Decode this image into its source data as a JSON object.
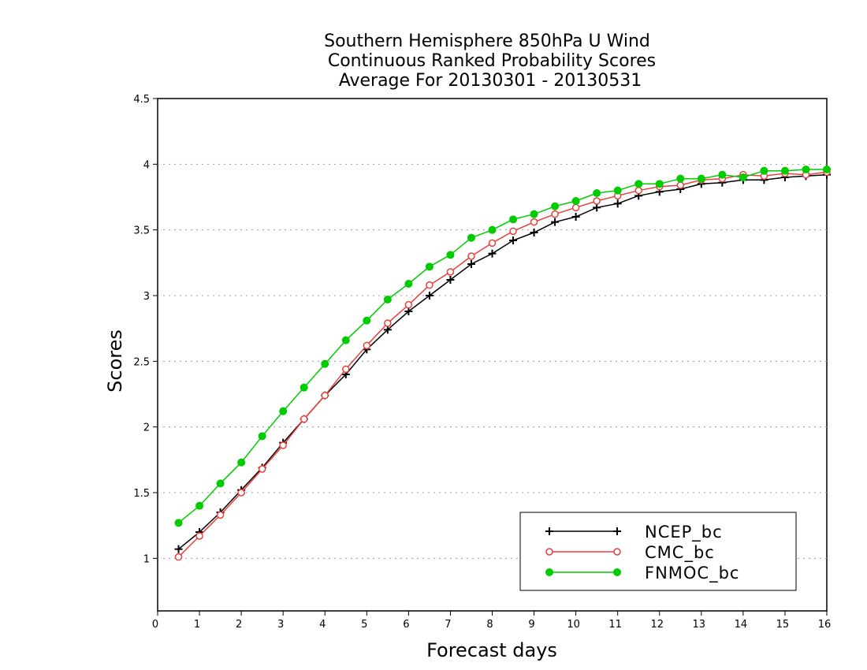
{
  "chart_data": {
    "type": "line",
    "title_lines": [
      "Southern Hemisphere 850hPa U Wind",
      "Continuous Ranked Probability Scores",
      "Average For 20130301 - 20130531"
    ],
    "xlabel": "Forecast days",
    "ylabel": "Scores",
    "xlim": [
      0,
      16
    ],
    "ylim": [
      0.6,
      4.5
    ],
    "x_ticks": [
      "0",
      "1",
      "2",
      "3",
      "4",
      "5",
      "6",
      "7",
      "8",
      "9",
      "10",
      "11",
      "12",
      "13",
      "14",
      "15",
      "16"
    ],
    "y_ticks": [
      "1",
      "1.5",
      "2",
      "2.5",
      "3",
      "3.5",
      "4",
      "4.5"
    ],
    "grid": "horizontal-dotted",
    "legend_position": "bottom-right",
    "x": [
      0.5,
      1,
      1.5,
      2,
      2.5,
      3,
      3.5,
      4,
      4.5,
      5,
      5.5,
      6,
      6.5,
      7,
      7.5,
      8,
      8.5,
      9,
      9.5,
      10,
      10.5,
      11,
      11.5,
      12,
      12.5,
      13,
      13.5,
      14,
      14.5,
      15,
      15.5,
      16
    ],
    "series": [
      {
        "name": "NCEP_bc",
        "color": "#000000",
        "marker": "plus",
        "values": [
          1.07,
          1.2,
          1.35,
          1.52,
          1.69,
          1.88,
          2.06,
          2.24,
          2.4,
          2.59,
          2.74,
          2.88,
          3.0,
          3.12,
          3.24,
          3.32,
          3.42,
          3.48,
          3.56,
          3.6,
          3.67,
          3.7,
          3.76,
          3.79,
          3.81,
          3.85,
          3.86,
          3.88,
          3.88,
          3.9,
          3.91,
          3.92
        ]
      },
      {
        "name": "CMC_bc",
        "color": "#e8403c",
        "marker": "circle-open",
        "values": [
          1.01,
          1.17,
          1.33,
          1.5,
          1.68,
          1.86,
          2.06,
          2.24,
          2.44,
          2.62,
          2.79,
          2.93,
          3.08,
          3.18,
          3.3,
          3.4,
          3.49,
          3.56,
          3.62,
          3.67,
          3.72,
          3.76,
          3.8,
          3.83,
          3.84,
          3.88,
          3.89,
          3.92,
          3.91,
          3.93,
          3.92,
          3.94
        ]
      },
      {
        "name": "FNMOC_bc",
        "color": "#00cc00",
        "marker": "circle-filled",
        "values": [
          1.27,
          1.4,
          1.57,
          1.73,
          1.93,
          2.12,
          2.3,
          2.48,
          2.66,
          2.81,
          2.97,
          3.09,
          3.22,
          3.31,
          3.44,
          3.5,
          3.58,
          3.62,
          3.68,
          3.72,
          3.78,
          3.8,
          3.85,
          3.85,
          3.89,
          3.89,
          3.92,
          3.9,
          3.95,
          3.95,
          3.96,
          3.96
        ]
      }
    ]
  }
}
